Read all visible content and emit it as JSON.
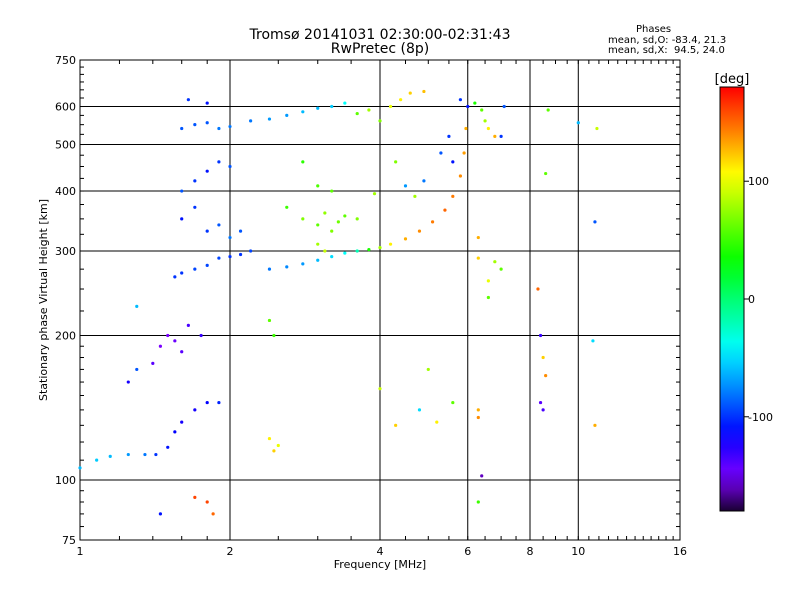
{
  "chart_data": {
    "type": "scatter",
    "title": "Tromsø 20141031 02:30:00-02:31:43",
    "subtitle": "RwPretec (8p)",
    "xlabel": "Frequency [MHz]",
    "ylabel": "Stationary phase Virtual Height [km]",
    "x_scale": "log",
    "y_scale": "log",
    "xlim": [
      1,
      16
    ],
    "ylim": [
      75,
      750
    ],
    "x_ticks": [
      "1",
      "2",
      "4",
      "6",
      "8",
      "10",
      "16"
    ],
    "x_tick_values": [
      1,
      2,
      4,
      6,
      8,
      10,
      16
    ],
    "y_ticks": [
      "75",
      "100",
      "200",
      "300",
      "400",
      "500",
      "600",
      "750"
    ],
    "y_tick_values": [
      75,
      100,
      200,
      300,
      400,
      500,
      600,
      750
    ],
    "grid": true,
    "colorbar": {
      "label": "[deg]",
      "ticks": [
        "100",
        "0",
        "-100"
      ],
      "tick_values": [
        100,
        0,
        -100
      ],
      "range": [
        -180,
        180
      ],
      "colormap": "rainbow"
    },
    "stats": {
      "heading": "Phases",
      "line_o": "mean, sd,O: -83.4, 21.3",
      "line_x": "mean, sd,X:  94.5, 24.0"
    },
    "series": [
      {
        "mode": "O",
        "points": [
          [
            1.0,
            106,
            -60
          ],
          [
            1.08,
            110,
            -55
          ],
          [
            1.15,
            112,
            -60
          ],
          [
            1.25,
            113,
            -70
          ],
          [
            1.35,
            113,
            -80
          ],
          [
            1.42,
            113,
            -100
          ],
          [
            1.5,
            117,
            -110
          ],
          [
            1.55,
            126,
            -115
          ],
          [
            1.6,
            132,
            -120
          ],
          [
            1.7,
            140,
            -120
          ],
          [
            1.8,
            145,
            -115
          ],
          [
            1.9,
            145,
            -105
          ],
          [
            1.4,
            175,
            -140
          ],
          [
            1.45,
            190,
            -150
          ],
          [
            1.5,
            200,
            -150
          ],
          [
            1.55,
            195,
            -145
          ],
          [
            1.6,
            185,
            -140
          ],
          [
            1.65,
            210,
            -135
          ],
          [
            1.75,
            200,
            -130
          ],
          [
            1.55,
            265,
            -100
          ],
          [
            1.6,
            270,
            -100
          ],
          [
            1.7,
            275,
            -95
          ],
          [
            1.8,
            280,
            -95
          ],
          [
            1.9,
            290,
            -95
          ],
          [
            2.0,
            292,
            -100
          ],
          [
            2.1,
            295,
            -100
          ],
          [
            2.2,
            300,
            -95
          ],
          [
            2.4,
            275,
            -80
          ],
          [
            2.6,
            278,
            -75
          ],
          [
            2.8,
            282,
            -70
          ],
          [
            3.0,
            287,
            -60
          ],
          [
            3.2,
            292,
            -50
          ],
          [
            3.4,
            297,
            -40
          ],
          [
            3.6,
            300,
            -20
          ],
          [
            3.8,
            302,
            40
          ],
          [
            4.0,
            305,
            80
          ],
          [
            4.2,
            310,
            110
          ],
          [
            4.5,
            318,
            130
          ],
          [
            4.8,
            330,
            140
          ],
          [
            5.1,
            345,
            145
          ],
          [
            5.4,
            365,
            150
          ],
          [
            5.6,
            390,
            145
          ],
          [
            5.8,
            430,
            140
          ],
          [
            5.9,
            480,
            135
          ],
          [
            5.95,
            540,
            130
          ],
          [
            6.0,
            600,
            -110
          ],
          [
            5.8,
            620,
            -100
          ],
          [
            5.6,
            460,
            -110
          ],
          [
            5.5,
            520,
            -100
          ],
          [
            5.3,
            480,
            -90
          ],
          [
            4.9,
            420,
            -80
          ],
          [
            4.5,
            410,
            -70
          ],
          [
            6.2,
            610,
            40
          ],
          [
            6.4,
            590,
            60
          ],
          [
            6.5,
            560,
            80
          ],
          [
            6.6,
            540,
            110
          ],
          [
            6.8,
            520,
            130
          ],
          [
            7.0,
            520,
            -100
          ],
          [
            7.1,
            600,
            -90
          ],
          [
            1.6,
            540,
            -90
          ],
          [
            1.7,
            550,
            -90
          ],
          [
            1.8,
            555,
            -90
          ],
          [
            1.9,
            540,
            -80
          ],
          [
            2.0,
            545,
            -80
          ],
          [
            2.2,
            560,
            -80
          ],
          [
            2.4,
            565,
            -70
          ],
          [
            2.6,
            575,
            -70
          ],
          [
            2.8,
            585,
            -60
          ],
          [
            3.0,
            595,
            -60
          ],
          [
            3.2,
            600,
            -55
          ],
          [
            3.4,
            610,
            -40
          ],
          [
            1.65,
            620,
            -100
          ],
          [
            1.8,
            610,
            -110
          ],
          [
            1.6,
            400,
            -90
          ],
          [
            1.7,
            420,
            -100
          ],
          [
            1.8,
            440,
            -110
          ],
          [
            1.9,
            460,
            -100
          ],
          [
            2.0,
            450,
            -90
          ],
          [
            1.6,
            350,
            -110
          ],
          [
            1.7,
            370,
            -100
          ],
          [
            1.8,
            330,
            -100
          ],
          [
            1.9,
            340,
            -90
          ],
          [
            2.0,
            320,
            -80
          ],
          [
            2.1,
            330,
            -90
          ]
        ]
      },
      {
        "mode": "X",
        "points": [
          [
            2.4,
            215,
            60
          ],
          [
            2.45,
            200,
            50
          ],
          [
            2.4,
            122,
            110
          ],
          [
            2.45,
            115,
            120
          ],
          [
            2.5,
            118,
            100
          ],
          [
            2.6,
            370,
            50
          ],
          [
            2.8,
            350,
            70
          ],
          [
            3.0,
            340,
            60
          ],
          [
            3.1,
            360,
            75
          ],
          [
            3.2,
            330,
            70
          ],
          [
            3.3,
            345,
            65
          ],
          [
            3.4,
            355,
            60
          ],
          [
            3.0,
            310,
            80
          ],
          [
            3.1,
            300,
            90
          ],
          [
            2.8,
            460,
            45
          ],
          [
            3.0,
            410,
            55
          ],
          [
            3.2,
            400,
            60
          ],
          [
            3.6,
            350,
            70
          ],
          [
            3.9,
            395,
            80
          ],
          [
            4.0,
            560,
            70
          ],
          [
            4.2,
            600,
            100
          ],
          [
            4.4,
            620,
            110
          ],
          [
            4.6,
            640,
            120
          ],
          [
            4.9,
            645,
            125
          ],
          [
            3.8,
            590,
            80
          ],
          [
            3.6,
            580,
            60
          ],
          [
            4.3,
            460,
            70
          ],
          [
            4.7,
            390,
            80
          ],
          [
            6.3,
            320,
            130
          ],
          [
            6.3,
            290,
            120
          ],
          [
            6.6,
            260,
            100
          ],
          [
            6.6,
            240,
            60
          ],
          [
            6.3,
            140,
            130
          ],
          [
            6.3,
            135,
            140
          ],
          [
            6.4,
            102,
            -160
          ],
          [
            6.3,
            90,
            50
          ],
          [
            6.8,
            285,
            80
          ],
          [
            7.0,
            275,
            60
          ],
          [
            8.3,
            250,
            150
          ],
          [
            8.4,
            200,
            -130
          ],
          [
            8.5,
            180,
            120
          ],
          [
            8.6,
            165,
            140
          ],
          [
            8.4,
            145,
            -140
          ],
          [
            8.5,
            140,
            -135
          ],
          [
            8.6,
            435,
            60
          ],
          [
            8.7,
            590,
            60
          ],
          [
            10.0,
            555,
            -60
          ],
          [
            10.8,
            345,
            -90
          ],
          [
            10.9,
            540,
            90
          ],
          [
            10.7,
            195,
            -50
          ],
          [
            10.8,
            130,
            130
          ],
          [
            4.0,
            155,
            90
          ],
          [
            4.3,
            130,
            120
          ],
          [
            4.8,
            140,
            -50
          ],
          [
            5.0,
            170,
            80
          ],
          [
            5.2,
            132,
            110
          ],
          [
            5.6,
            145,
            60
          ],
          [
            1.8,
            90,
            160
          ],
          [
            1.85,
            85,
            150
          ],
          [
            1.7,
            92,
            160
          ],
          [
            1.45,
            85,
            -110
          ],
          [
            1.3,
            170,
            -90
          ],
          [
            1.25,
            160,
            -120
          ],
          [
            1.3,
            230,
            -60
          ]
        ]
      }
    ]
  }
}
